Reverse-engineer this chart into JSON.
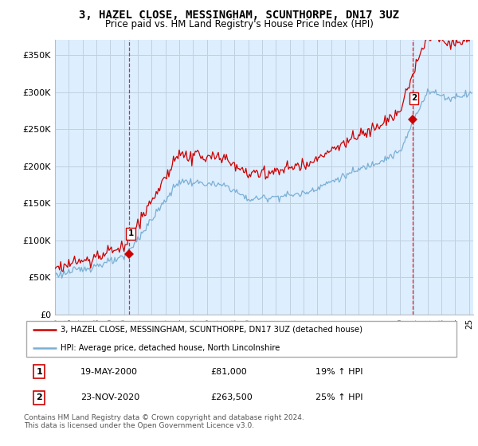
{
  "title": "3, HAZEL CLOSE, MESSINGHAM, SCUNTHORPE, DN17 3UZ",
  "subtitle": "Price paid vs. HM Land Registry's House Price Index (HPI)",
  "xlim_start": 1995.0,
  "xlim_end": 2025.3,
  "ylim": [
    0,
    370000
  ],
  "yticks": [
    0,
    50000,
    100000,
    150000,
    200000,
    250000,
    300000,
    350000
  ],
  "ytick_labels": [
    "£0",
    "£50K",
    "£100K",
    "£150K",
    "£200K",
    "£250K",
    "£300K",
    "£350K"
  ],
  "legend_label_red": "3, HAZEL CLOSE, MESSINGHAM, SCUNTHORPE, DN17 3UZ (detached house)",
  "legend_label_blue": "HPI: Average price, detached house, North Lincolnshire",
  "sale1_date": "19-MAY-2000",
  "sale1_price": "£81,000",
  "sale1_hpi": "19% ↑ HPI",
  "sale1_x": 2000.38,
  "sale1_y": 81000,
  "sale2_date": "23-NOV-2020",
  "sale2_price": "£263,500",
  "sale2_hpi": "25% ↑ HPI",
  "sale2_x": 2020.9,
  "sale2_y": 263500,
  "red_color": "#cc0000",
  "blue_color": "#7aafd4",
  "bg_color": "#ddeeff",
  "grid_color": "#c0d0e0",
  "footer": "Contains HM Land Registry data © Crown copyright and database right 2024.\nThis data is licensed under the Open Government Licence v3.0.",
  "title_fontsize": 10,
  "subtitle_fontsize": 8.5
}
